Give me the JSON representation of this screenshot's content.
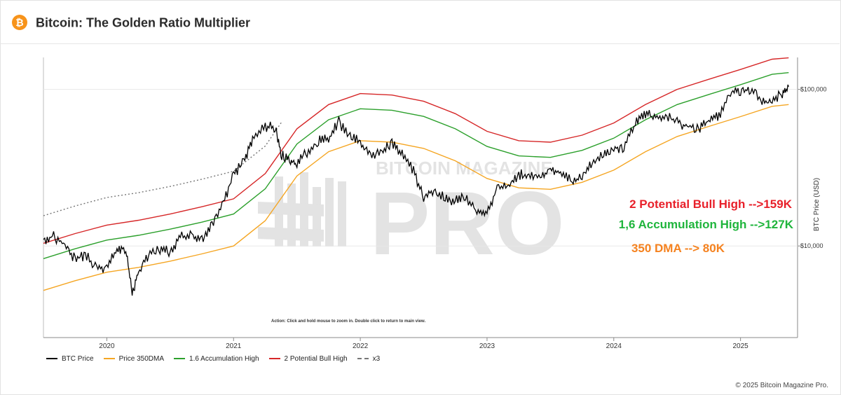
{
  "page": {
    "title": "Bitcoin: The Golden Ratio Multiplier",
    "logo_glyph": "₿",
    "copyright": "© 2025 Bitcoin Magazine Pro.",
    "action_hint": "Action: Click and hold mouse to zoom in.  Double click to return to main view.",
    "watermark_top": "BITCOIN MAGAZINE",
    "watermark_big": "PRO"
  },
  "annotations": [
    {
      "text": "2 Potential Bull High -->159K",
      "color": "#e8202a"
    },
    {
      "text": "1,6 Accumulation High -->127K",
      "color": "#1fb53c"
    },
    {
      "text": "350 DMA --> 80K",
      "color": "#f5821f"
    }
  ],
  "legend": [
    {
      "label": "BTC Price",
      "color": "#000000",
      "dash": false
    },
    {
      "label": "Price 350DMA",
      "color": "#f5a623",
      "dash": false
    },
    {
      "label": "1.6 Accumulation High",
      "color": "#2ca02c",
      "dash": false
    },
    {
      "label": "2 Potential Bull High",
      "color": "#d62728",
      "dash": false
    },
    {
      "label": "x3",
      "color": "#777777",
      "dash": true
    }
  ],
  "chart_data": {
    "type": "line",
    "title": "Bitcoin: The Golden Ratio Multiplier",
    "xlabel": "",
    "ylabel": "BTC Price (USD)",
    "yscale": "log",
    "ylim": [
      2600,
      160000
    ],
    "xlim": [
      2019.5,
      2025.45
    ],
    "x_ticks": [
      2020,
      2021,
      2022,
      2023,
      2024,
      2025
    ],
    "y_ticks": [
      {
        "value": 10000,
        "label": "$10,000"
      },
      {
        "value": 100000,
        "label": "$100,000"
      }
    ],
    "series": [
      {
        "name": "BTC Price",
        "color": "#000000",
        "x": [
          2019.5,
          2019.58,
          2019.67,
          2019.75,
          2019.83,
          2019.92,
          2020.0,
          2020.08,
          2020.15,
          2020.2,
          2020.25,
          2020.33,
          2020.42,
          2020.5,
          2020.58,
          2020.67,
          2020.75,
          2020.83,
          2020.92,
          2021.0,
          2021.08,
          2021.15,
          2021.25,
          2021.33,
          2021.38,
          2021.45,
          2021.5,
          2021.58,
          2021.67,
          2021.75,
          2021.83,
          2021.92,
          2022.0,
          2022.08,
          2022.17,
          2022.25,
          2022.33,
          2022.42,
          2022.5,
          2022.58,
          2022.67,
          2022.75,
          2022.83,
          2022.92,
          2023.0,
          2023.08,
          2023.17,
          2023.25,
          2023.33,
          2023.42,
          2023.5,
          2023.58,
          2023.67,
          2023.75,
          2023.83,
          2023.92,
          2024.0,
          2024.08,
          2024.17,
          2024.25,
          2024.33,
          2024.42,
          2024.5,
          2024.58,
          2024.67,
          2024.75,
          2024.83,
          2024.92,
          2025.0,
          2025.08,
          2025.17,
          2025.25,
          2025.33,
          2025.38
        ],
        "values": [
          11000,
          11500,
          10200,
          8200,
          8800,
          7200,
          7200,
          9500,
          9700,
          5000,
          6800,
          8800,
          9500,
          9200,
          11500,
          11600,
          10800,
          13800,
          18500,
          29000,
          34000,
          48000,
          58000,
          57000,
          38000,
          35000,
          33000,
          40000,
          47000,
          48000,
          62000,
          50000,
          46000,
          38000,
          40000,
          46000,
          38000,
          30000,
          20000,
          23000,
          20000,
          19500,
          20500,
          17000,
          16500,
          23000,
          24000,
          28500,
          28500,
          27000,
          30500,
          29500,
          26000,
          27500,
          35000,
          37500,
          42000,
          43000,
          62000,
          70000,
          65000,
          67000,
          62000,
          58000,
          56000,
          63000,
          68000,
          96000,
          96000,
          100000,
          84000,
          85000,
          94000,
          104000
        ]
      },
      {
        "name": "Price 350DMA",
        "color": "#f5a623",
        "x": [
          2019.5,
          2019.75,
          2020.0,
          2020.25,
          2020.5,
          2020.75,
          2021.0,
          2021.25,
          2021.5,
          2021.75,
          2022.0,
          2022.25,
          2022.5,
          2022.75,
          2023.0,
          2023.25,
          2023.5,
          2023.75,
          2024.0,
          2024.25,
          2024.5,
          2024.75,
          2025.0,
          2025.25,
          2025.38
        ],
        "values": [
          5200,
          6000,
          6800,
          7300,
          8000,
          8900,
          10000,
          14500,
          28000,
          40000,
          47000,
          46000,
          42000,
          35000,
          27000,
          23500,
          23000,
          25500,
          30500,
          40000,
          50000,
          58000,
          67000,
          78000,
          80000
        ]
      },
      {
        "name": "1.6 Accumulation High",
        "color": "#2ca02c",
        "x": [
          2019.5,
          2019.75,
          2020.0,
          2020.25,
          2020.5,
          2020.75,
          2021.0,
          2021.25,
          2021.5,
          2021.75,
          2022.0,
          2022.25,
          2022.5,
          2022.75,
          2023.0,
          2023.25,
          2023.5,
          2023.75,
          2024.0,
          2024.25,
          2024.5,
          2024.75,
          2025.0,
          2025.25,
          2025.38
        ],
        "values": [
          8300,
          9600,
          10900,
          11700,
          12800,
          14200,
          16000,
          23200,
          44800,
          64000,
          75200,
          73600,
          67200,
          56000,
          43200,
          37600,
          36800,
          40800,
          48800,
          64000,
          80000,
          92800,
          107200,
          124800,
          128000
        ]
      },
      {
        "name": "2 Potential Bull High",
        "color": "#d62728",
        "x": [
          2019.5,
          2019.75,
          2020.0,
          2020.25,
          2020.5,
          2020.75,
          2021.0,
          2021.25,
          2021.5,
          2021.75,
          2022.0,
          2022.25,
          2022.5,
          2022.75,
          2023.0,
          2023.25,
          2023.5,
          2023.75,
          2024.0,
          2024.25,
          2024.5,
          2024.75,
          2025.0,
          2025.25,
          2025.38
        ],
        "values": [
          10400,
          12000,
          13600,
          14600,
          16000,
          17800,
          20000,
          29000,
          56000,
          80000,
          94000,
          92000,
          84000,
          70000,
          54000,
          47000,
          46000,
          51000,
          61000,
          80000,
          100000,
          116000,
          134000,
          156000,
          159000
        ]
      },
      {
        "name": "x3",
        "color": "#777777",
        "dash": true,
        "x": [
          2019.5,
          2019.75,
          2020.0,
          2020.25,
          2020.5,
          2020.75,
          2021.0,
          2021.25,
          2021.38
        ],
        "values": [
          15600,
          18000,
          20400,
          21900,
          24000,
          26700,
          30000,
          43500,
          62000
        ]
      }
    ]
  }
}
